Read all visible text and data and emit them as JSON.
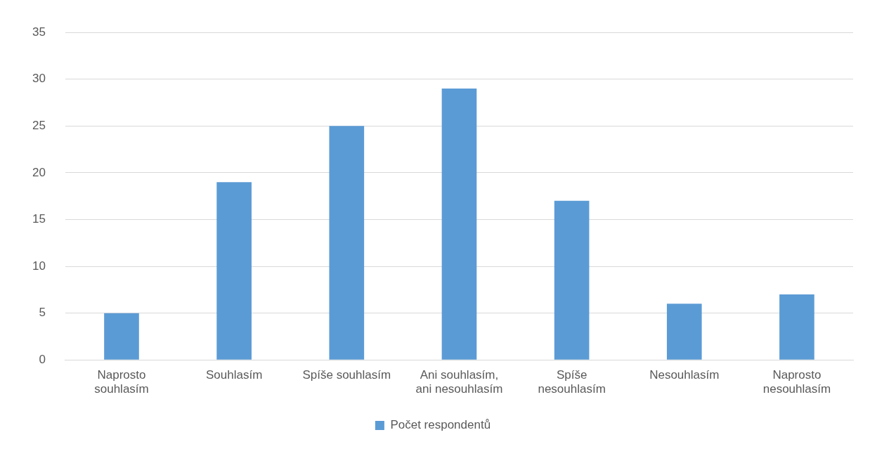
{
  "chart_data": {
    "type": "bar",
    "categories": [
      "Naprosto souhlasím",
      "Souhlasím",
      "Spíše souhlasím",
      "Ani souhlasím, ani nesouhlasím",
      "Spíše nesouhlasím",
      "Nesouhlasím",
      "Naprosto nesouhlasím"
    ],
    "series": [
      {
        "name": "Počet respondentů",
        "color": "#5b9bd5",
        "values": [
          5,
          19,
          25,
          29,
          17,
          6,
          7
        ]
      }
    ],
    "ylim": [
      0,
      35
    ],
    "yticks": [
      0,
      5,
      10,
      15,
      20,
      25,
      30,
      35
    ],
    "grid": "y",
    "legend": "bottom"
  }
}
